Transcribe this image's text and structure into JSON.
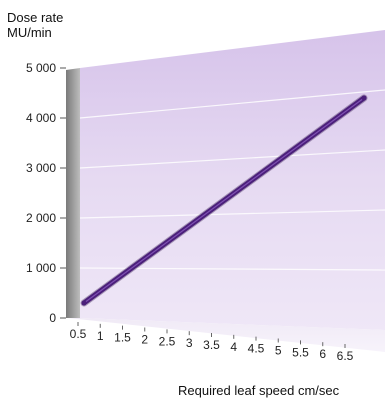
{
  "chart_data": {
    "type": "line",
    "ylabel_line1": "Dose rate",
    "ylabel_line2": "MU/min",
    "xlabel": "Required leaf speed cm/sec",
    "x": [
      0.5,
      6.5
    ],
    "y": [
      300,
      4400
    ],
    "xticks": [
      "0.5",
      "1",
      "1.5",
      "2",
      "2.5",
      "3",
      "3.5",
      "4",
      "4.5",
      "5",
      "5.5",
      "6",
      "6.5"
    ],
    "yticks": [
      "0",
      "1 000",
      "2 000",
      "3 000",
      "4 000",
      "5 000"
    ],
    "ylim": [
      0,
      5000
    ],
    "xlim": [
      0.5,
      6.5
    ],
    "grid": true,
    "line_color": "#4b1f7a",
    "wall_color": "#d9c8ea"
  }
}
